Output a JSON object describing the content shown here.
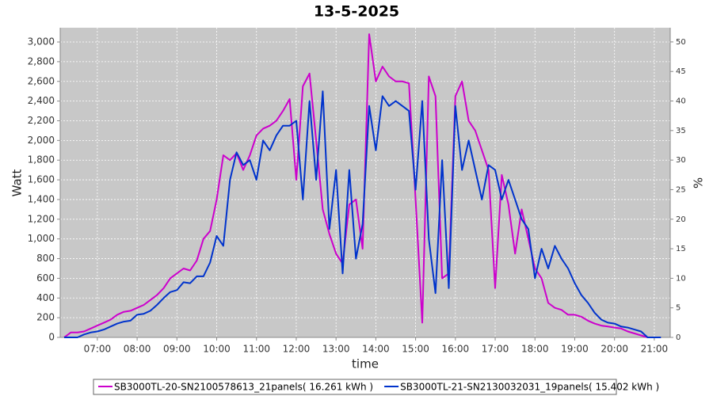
{
  "chart_data": {
    "type": "line",
    "title": "13-5-2025",
    "x_label": "time",
    "y_label": "Watt",
    "y2_label": "%",
    "x": [
      370,
      380,
      390,
      400,
      410,
      420,
      430,
      440,
      450,
      460,
      470,
      480,
      490,
      500,
      510,
      520,
      530,
      540,
      550,
      560,
      570,
      580,
      590,
      600,
      610,
      620,
      630,
      640,
      650,
      660,
      670,
      680,
      690,
      700,
      710,
      720,
      730,
      740,
      750,
      760,
      770,
      780,
      790,
      800,
      810,
      820,
      830,
      840,
      850,
      860,
      870,
      880,
      890,
      900,
      910,
      920,
      930,
      940,
      950,
      960,
      970,
      980,
      990,
      1000,
      1010,
      1020,
      1030,
      1040,
      1050,
      1060,
      1070,
      1080,
      1090,
      1100,
      1110,
      1120,
      1130,
      1140,
      1150,
      1160,
      1170,
      1180,
      1190,
      1200,
      1210,
      1220,
      1230,
      1240,
      1250,
      1260,
      1270
    ],
    "series": [
      {
        "name": "SB3000TL-20-SN2100578613_21panels( 16.261 kWh )",
        "color": "#cc00cc",
        "values": [
          0,
          50,
          50,
          60,
          90,
          120,
          150,
          180,
          230,
          260,
          270,
          300,
          330,
          380,
          430,
          500,
          600,
          650,
          700,
          680,
          780,
          1000,
          1080,
          1400,
          1850,
          1800,
          1870,
          1700,
          1850,
          2050,
          2120,
          2150,
          2200,
          2300,
          2420,
          1600,
          2550,
          2680,
          2000,
          1300,
          1050,
          850,
          750,
          1350,
          1400,
          900,
          3080,
          2600,
          2750,
          2650,
          2600,
          2600,
          2580,
          1400,
          150,
          2650,
          2450,
          600,
          650,
          2450,
          2600,
          2200,
          2100,
          1900,
          1700,
          500,
          1650,
          1350,
          850,
          1300,
          1000,
          700,
          600,
          350,
          300,
          280,
          230,
          230,
          210,
          170,
          140,
          120,
          110,
          100,
          90,
          60,
          40,
          20,
          0,
          null,
          null
        ]
      },
      {
        "name": "SB3000TL-21-SN2130032031_19panels( 15.402 kWh )",
        "color": "#0033cc",
        "values": [
          0,
          0,
          0,
          30,
          50,
          60,
          80,
          110,
          140,
          160,
          170,
          230,
          240,
          270,
          330,
          400,
          460,
          480,
          560,
          550,
          620,
          620,
          760,
          1030,
          930,
          1600,
          1880,
          1750,
          1800,
          1600,
          2000,
          1900,
          2050,
          2150,
          2150,
          2200,
          1400,
          2400,
          1600,
          2500,
          1100,
          1700,
          650,
          1700,
          800,
          1150,
          2350,
          1900,
          2450,
          2350,
          2400,
          2350,
          2300,
          1500,
          2400,
          1000,
          450,
          1800,
          500,
          2350,
          1700,
          2000,
          1700,
          1400,
          1750,
          1700,
          1400,
          1600,
          1400,
          1200,
          1100,
          600,
          900,
          700,
          930,
          800,
          700,
          550,
          430,
          350,
          250,
          180,
          150,
          140,
          110,
          100,
          80,
          60,
          0,
          0,
          0
        ]
      }
    ],
    "xlim": [
      364,
      1284
    ],
    "xticks": [
      {
        "value": 420,
        "label": "07:00"
      },
      {
        "value": 480,
        "label": "08:00"
      },
      {
        "value": 540,
        "label": "09:00"
      },
      {
        "value": 600,
        "label": "10:00"
      },
      {
        "value": 660,
        "label": "11:00"
      },
      {
        "value": 720,
        "label": "12:00"
      },
      {
        "value": 780,
        "label": "13:00"
      },
      {
        "value": 840,
        "label": "14:00"
      },
      {
        "value": 900,
        "label": "15:00"
      },
      {
        "value": 960,
        "label": "16:00"
      },
      {
        "value": 1020,
        "label": "17:00"
      },
      {
        "value": 1080,
        "label": "18:00"
      },
      {
        "value": 1140,
        "label": "19:00"
      },
      {
        "value": 1200,
        "label": "20:00"
      },
      {
        "value": 1260,
        "label": "21:00"
      }
    ],
    "ylim": [
      0,
      3145
    ],
    "yticks": [
      0,
      200,
      400,
      600,
      800,
      {
        "value": 1000,
        "label": "1,000"
      },
      {
        "value": 1200,
        "label": "1,200"
      },
      {
        "value": 1400,
        "label": "1,400"
      },
      {
        "value": 1600,
        "label": "1,600"
      },
      {
        "value": 1800,
        "label": "1,800"
      },
      {
        "value": 2000,
        "label": "2,000"
      },
      {
        "value": 2200,
        "label": "2,200"
      },
      {
        "value": 2400,
        "label": "2,400"
      },
      {
        "value": 2600,
        "label": "2,600"
      },
      {
        "value": 2800,
        "label": "2,800"
      },
      {
        "value": 3000,
        "label": "3,000"
      }
    ],
    "y2lim": [
      0,
      52.4
    ],
    "y2ticks": [
      0,
      5,
      10,
      15,
      20,
      25,
      30,
      35,
      40,
      45,
      50
    ],
    "grid": true
  }
}
